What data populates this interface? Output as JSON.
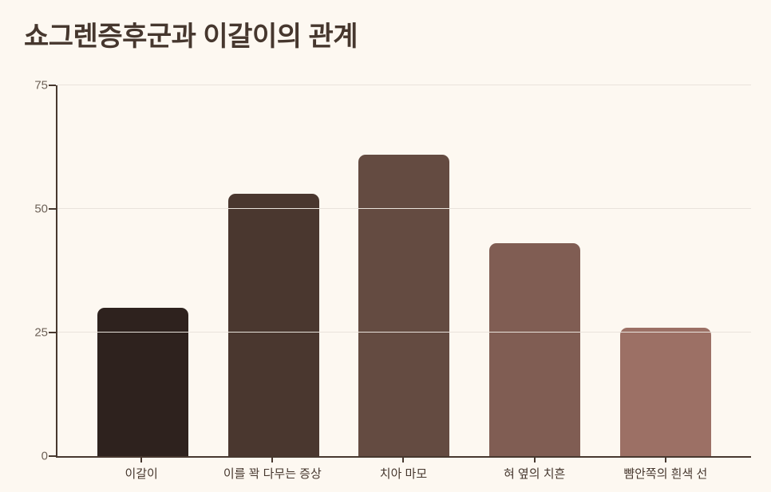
{
  "title": "쇼그렌증후군과 이갈이의 관계",
  "chart_data": {
    "type": "bar",
    "title": "쇼그렌증후군과 이갈이의 관계",
    "categories": [
      "이갈이",
      "이를 꽉 다무는 증상",
      "치아 마모",
      "혀 옆의 치흔",
      "뺨안쪽의 흰색 선"
    ],
    "values": [
      30,
      53,
      61,
      43,
      26
    ],
    "bar_colors": [
      "#2E221E",
      "#4A372F",
      "#644B41",
      "#805D53",
      "#9C7065"
    ],
    "xlabel": "",
    "ylabel": "",
    "ylim": [
      0,
      75
    ],
    "yticks": [
      0,
      25,
      50,
      75
    ],
    "grid": true,
    "legend": false
  },
  "colors": {
    "background": "#FDF8F1",
    "title_text": "#46372E",
    "axis_line": "#47382F",
    "gridline": "#E9E3DC",
    "y_tick_text": "#6E6258",
    "x_tick_text": "#46372E"
  }
}
